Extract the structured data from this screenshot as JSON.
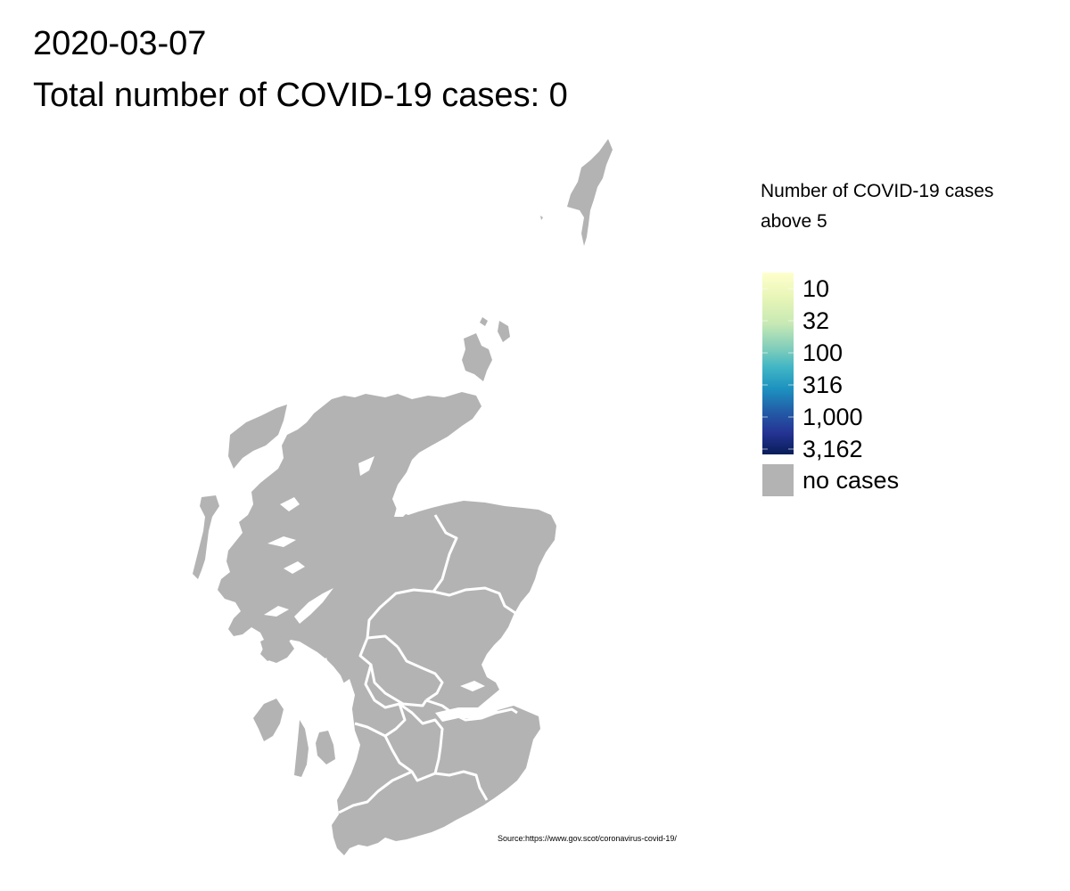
{
  "title": {
    "date": "2020-03-07",
    "total": "Total number of COVID-19 cases: 0"
  },
  "map": {
    "region": "Scotland",
    "fill_color": "#b3b3b3",
    "border_color": "#ffffff",
    "total_cases": 0
  },
  "legend": {
    "title_line1": "Number of COVID-19 cases",
    "title_line2": "above 5",
    "scale_type": "log",
    "ticks": [
      "10",
      "32",
      "100",
      "316",
      "1,000",
      "3,162"
    ],
    "gradient_colors": [
      "#ffffcc",
      "#c7e9b4",
      "#7fcdbb",
      "#41b6c4",
      "#1d91c0",
      "#225ea8",
      "#253494",
      "#081d58"
    ],
    "no_cases_label": "no cases",
    "no_cases_color": "#b3b3b3"
  },
  "source": "Source:https://www.gov.scot/coronavirus-covid-19/"
}
